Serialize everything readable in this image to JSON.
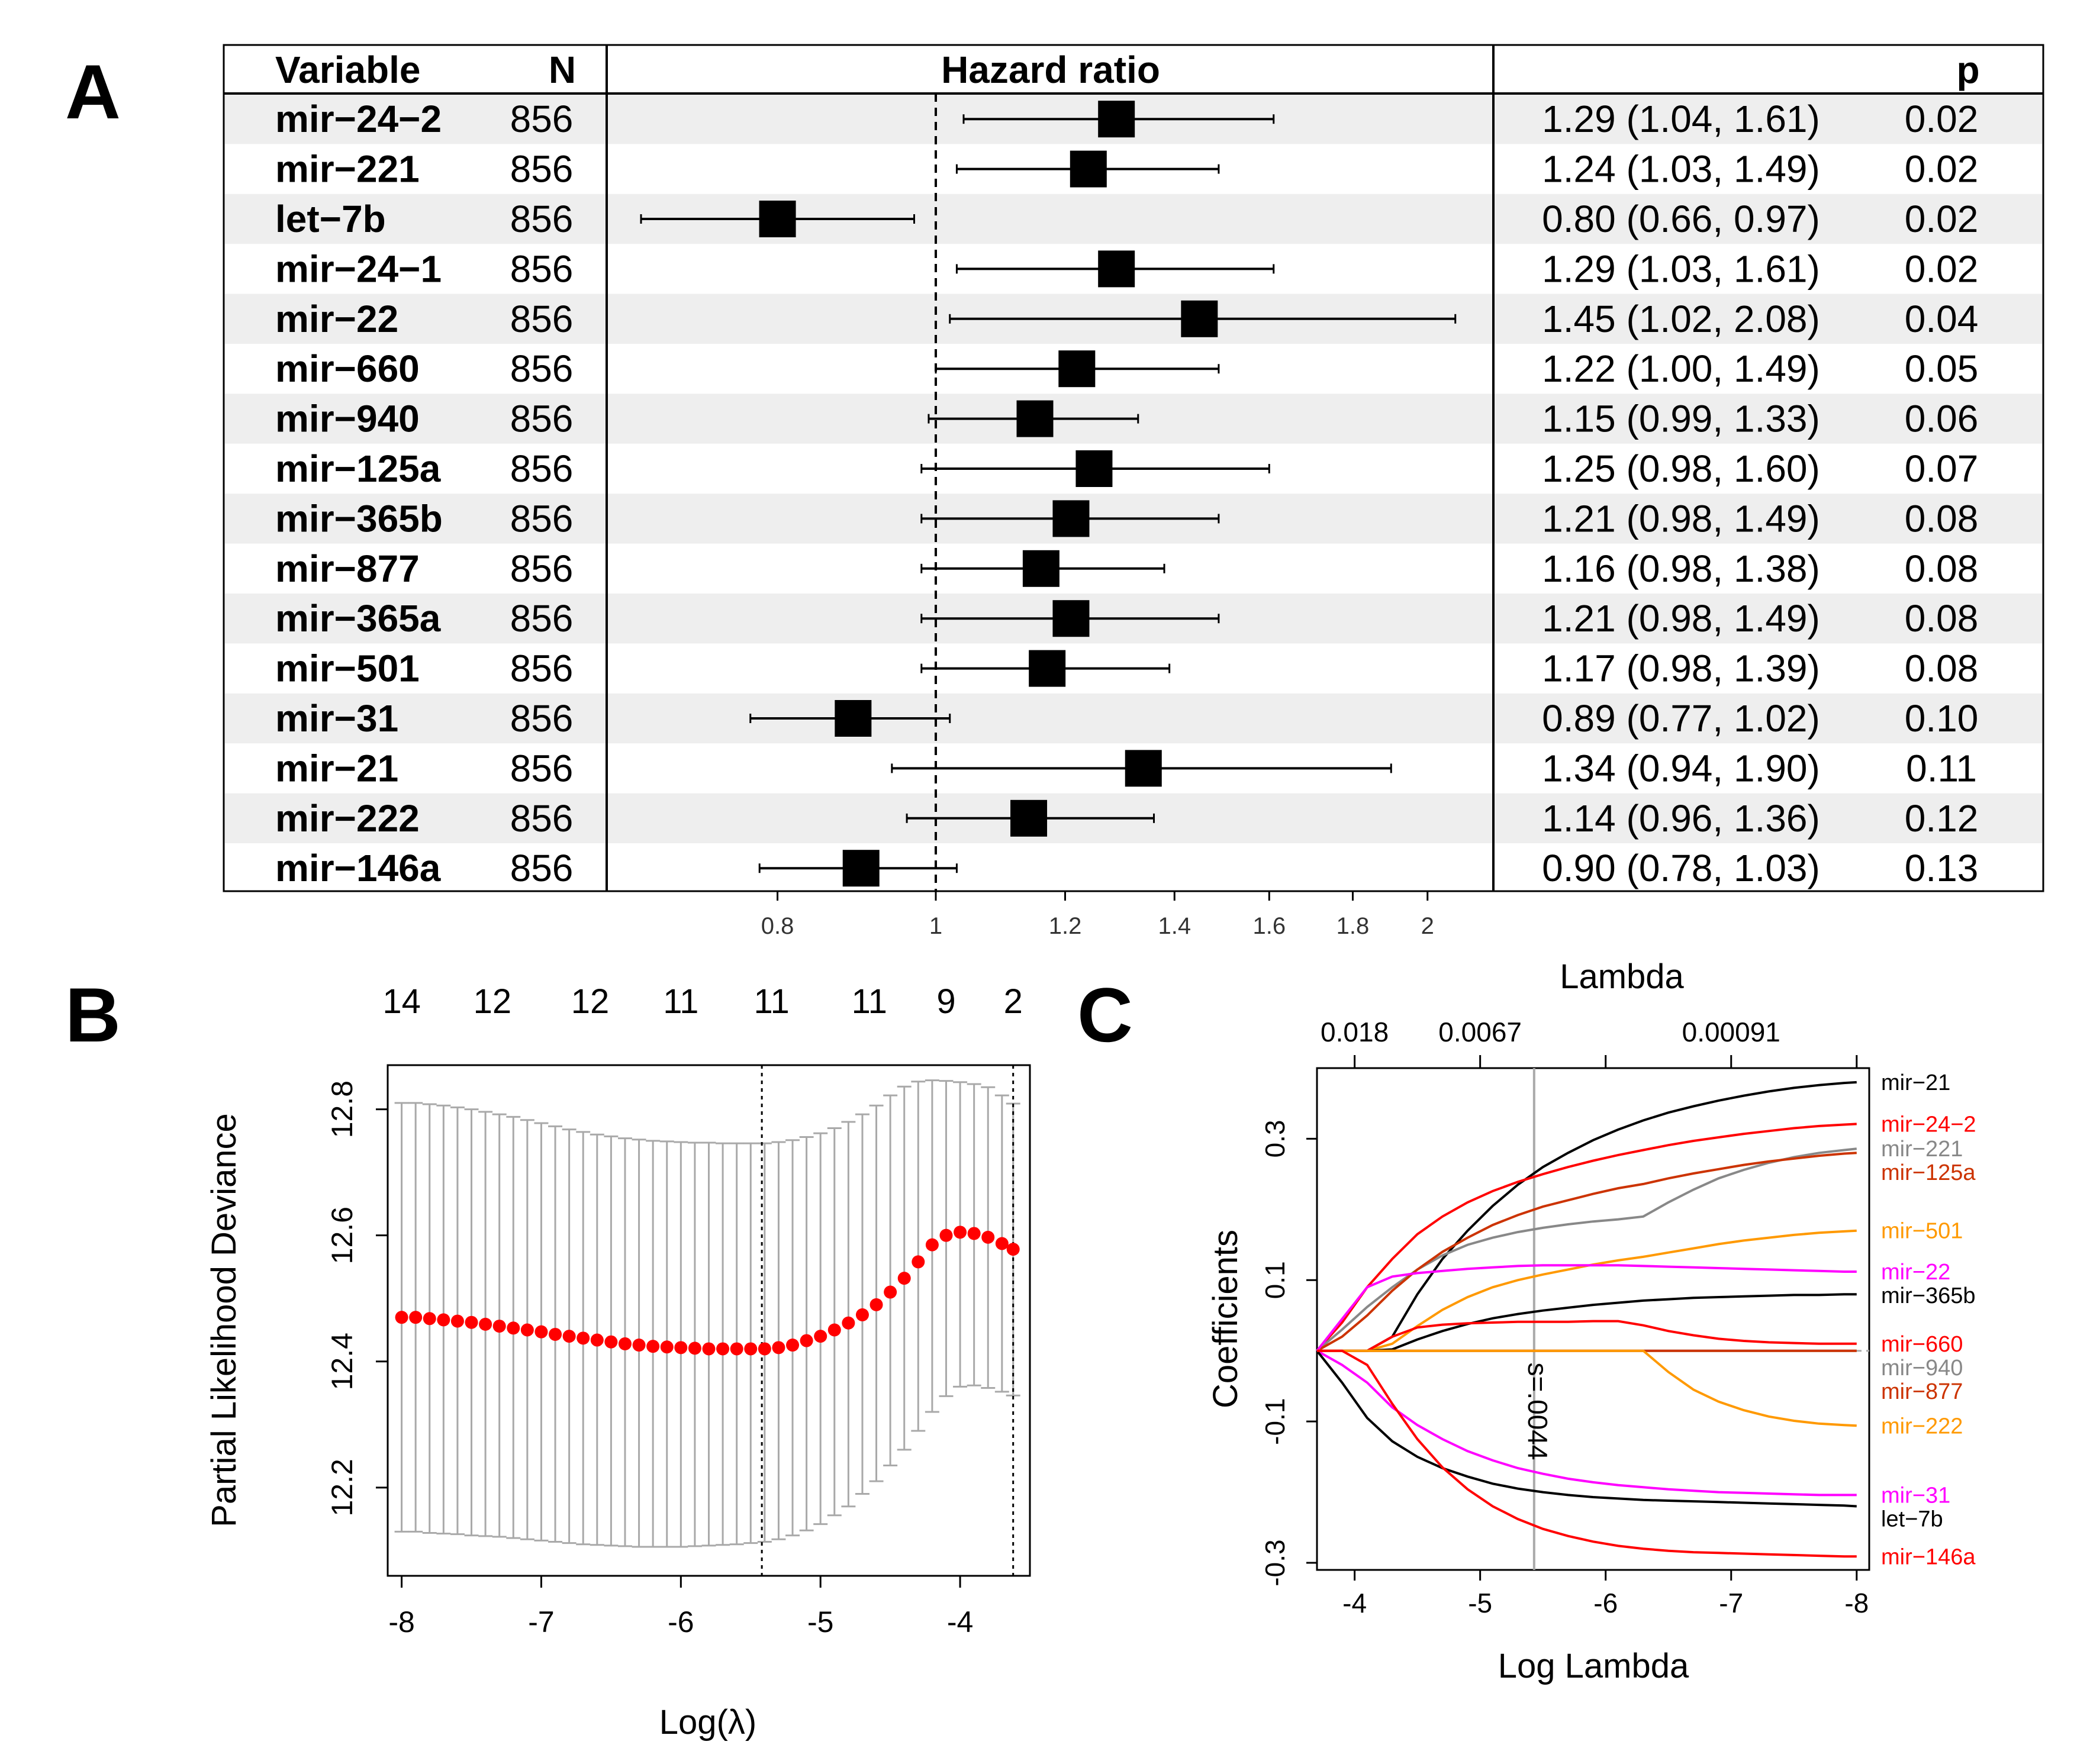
{
  "chart_data": [
    {
      "panel": "A",
      "type": "forest",
      "header": {
        "variable": "Variable",
        "n": "N",
        "hr": "Hazard ratio",
        "ci": "",
        "p": "p"
      },
      "axis_ticks": [
        "0.8",
        "1",
        "1.2",
        "1.4",
        "1.6",
        "1.8",
        "2"
      ],
      "rows": [
        {
          "variable": "mir−24−2",
          "n": "856",
          "hr": 1.29,
          "lo": 1.04,
          "hi": 1.61,
          "ci_text": "1.29 (1.04, 1.61)",
          "p": "0.02"
        },
        {
          "variable": "mir−221",
          "n": "856",
          "hr": 1.24,
          "lo": 1.03,
          "hi": 1.49,
          "ci_text": "1.24 (1.03, 1.49)",
          "p": "0.02"
        },
        {
          "variable": "let−7b",
          "n": "856",
          "hr": 0.8,
          "lo": 0.66,
          "hi": 0.97,
          "ci_text": "0.80 (0.66, 0.97)",
          "p": "0.02"
        },
        {
          "variable": "mir−24−1",
          "n": "856",
          "hr": 1.29,
          "lo": 1.03,
          "hi": 1.61,
          "ci_text": "1.29 (1.03, 1.61)",
          "p": "0.02"
        },
        {
          "variable": "mir−22",
          "n": "856",
          "hr": 1.45,
          "lo": 1.02,
          "hi": 2.08,
          "ci_text": "1.45 (1.02, 2.08)",
          "p": "0.04"
        },
        {
          "variable": "mir−660",
          "n": "856",
          "hr": 1.22,
          "lo": 1.0,
          "hi": 1.49,
          "ci_text": "1.22 (1.00, 1.49)",
          "p": "0.05"
        },
        {
          "variable": "mir−940",
          "n": "856",
          "hr": 1.15,
          "lo": 0.99,
          "hi": 1.33,
          "ci_text": "1.15 (0.99, 1.33)",
          "p": "0.06"
        },
        {
          "variable": "mir−125a",
          "n": "856",
          "hr": 1.25,
          "lo": 0.98,
          "hi": 1.6,
          "ci_text": "1.25 (0.98, 1.60)",
          "p": "0.07"
        },
        {
          "variable": "mir−365b",
          "n": "856",
          "hr": 1.21,
          "lo": 0.98,
          "hi": 1.49,
          "ci_text": "1.21 (0.98, 1.49)",
          "p": "0.08"
        },
        {
          "variable": "mir−877",
          "n": "856",
          "hr": 1.16,
          "lo": 0.98,
          "hi": 1.38,
          "ci_text": "1.16 (0.98, 1.38)",
          "p": "0.08"
        },
        {
          "variable": "mir−365a",
          "n": "856",
          "hr": 1.21,
          "lo": 0.98,
          "hi": 1.49,
          "ci_text": "1.21 (0.98, 1.49)",
          "p": "0.08"
        },
        {
          "variable": "mir−501",
          "n": "856",
          "hr": 1.17,
          "lo": 0.98,
          "hi": 1.39,
          "ci_text": "1.17 (0.98, 1.39)",
          "p": "0.08"
        },
        {
          "variable": "mir−31",
          "n": "856",
          "hr": 0.89,
          "lo": 0.77,
          "hi": 1.02,
          "ci_text": "0.89 (0.77, 1.02)",
          "p": "0.10"
        },
        {
          "variable": "mir−21",
          "n": "856",
          "hr": 1.34,
          "lo": 0.94,
          "hi": 1.9,
          "ci_text": "1.34 (0.94, 1.90)",
          "p": "0.11"
        },
        {
          "variable": "mir−222",
          "n": "856",
          "hr": 1.14,
          "lo": 0.96,
          "hi": 1.36,
          "ci_text": "1.14 (0.96, 1.36)",
          "p": "0.12"
        },
        {
          "variable": "mir−146a",
          "n": "856",
          "hr": 0.9,
          "lo": 0.78,
          "hi": 1.03,
          "ci_text": "0.90 (0.78, 1.03)",
          "p": "0.13"
        }
      ]
    },
    {
      "panel": "B",
      "type": "scatter",
      "xlabel": "Log(λ)",
      "ylabel": "Partial Likelihood Deviance",
      "xlim": [
        -8.1,
        -3.5
      ],
      "ylim": [
        12.06,
        12.87
      ],
      "x_ticks": [
        "-8",
        "-7",
        "-6",
        "-5",
        "-4"
      ],
      "y_ticks": [
        "12.2",
        "12.4",
        "12.6",
        "12.8"
      ],
      "top_labels": [
        {
          "x": -8.0,
          "label": "14"
        },
        {
          "x": -7.35,
          "label": "12"
        },
        {
          "x": -6.65,
          "label": "12"
        },
        {
          "x": -6.0,
          "label": "11"
        },
        {
          "x": -5.35,
          "label": "11"
        },
        {
          "x": -4.65,
          "label": "11"
        },
        {
          "x": -4.1,
          "label": "9"
        },
        {
          "x": -3.62,
          "label": "2"
        }
      ],
      "vlines": [
        -5.42,
        -3.62
      ],
      "x": [
        -8.0,
        -7.9,
        -7.8,
        -7.7,
        -7.6,
        -7.5,
        -7.4,
        -7.3,
        -7.2,
        -7.1,
        -7.0,
        -6.9,
        -6.8,
        -6.7,
        -6.6,
        -6.5,
        -6.4,
        -6.3,
        -6.2,
        -6.1,
        -6.0,
        -5.9,
        -5.8,
        -5.7,
        -5.6,
        -5.5,
        -5.4,
        -5.3,
        -5.2,
        -5.1,
        -5.0,
        -4.9,
        -4.8,
        -4.7,
        -4.6,
        -4.5,
        -4.4,
        -4.3,
        -4.2,
        -4.1,
        -4.0,
        -3.9,
        -3.8,
        -3.7,
        -3.62
      ],
      "values": [
        12.47,
        12.47,
        12.468,
        12.466,
        12.464,
        12.462,
        12.459,
        12.456,
        12.453,
        12.45,
        12.447,
        12.443,
        12.44,
        12.437,
        12.434,
        12.431,
        12.428,
        12.426,
        12.424,
        12.423,
        12.422,
        12.421,
        12.42,
        12.42,
        12.42,
        12.42,
        12.42,
        12.422,
        12.426,
        12.433,
        12.44,
        12.45,
        12.461,
        12.474,
        12.49,
        12.51,
        12.532,
        12.558,
        12.585,
        12.6,
        12.605,
        12.603,
        12.597,
        12.587,
        12.578
      ],
      "lower": [
        12.13,
        12.13,
        12.128,
        12.127,
        12.126,
        12.124,
        12.123,
        12.122,
        12.12,
        12.118,
        12.116,
        12.114,
        12.112,
        12.11,
        12.109,
        12.108,
        12.107,
        12.106,
        12.106,
        12.106,
        12.106,
        12.107,
        12.108,
        12.109,
        12.11,
        12.112,
        12.114,
        12.118,
        12.124,
        12.132,
        12.142,
        12.156,
        12.17,
        12.19,
        12.21,
        12.235,
        12.26,
        12.29,
        12.32,
        12.345,
        12.36,
        12.362,
        12.358,
        12.352,
        12.346
      ],
      "upper": [
        12.81,
        12.81,
        12.808,
        12.806,
        12.803,
        12.8,
        12.796,
        12.792,
        12.788,
        12.783,
        12.778,
        12.773,
        12.768,
        12.764,
        12.76,
        12.757,
        12.754,
        12.752,
        12.75,
        12.749,
        12.748,
        12.747,
        12.747,
        12.746,
        12.746,
        12.746,
        12.746,
        12.748,
        12.751,
        12.756,
        12.762,
        12.77,
        12.78,
        12.792,
        12.806,
        12.822,
        12.836,
        12.844,
        12.846,
        12.845,
        12.843,
        12.84,
        12.835,
        12.822,
        12.809
      ]
    },
    {
      "panel": "C",
      "type": "line",
      "title": "Lambda",
      "xlabel": "Log Lambda",
      "ylabel": "Coefficients",
      "xlim": [
        -3.7,
        -8.1
      ],
      "ylim": [
        -0.31,
        0.4
      ],
      "x_ticks": [
        "-4",
        "-5",
        "-6",
        "-7",
        "-8"
      ],
      "y_ticks": [
        "-0.3",
        "-0.1",
        "0.1",
        "0.3"
      ],
      "top_ticks": [
        {
          "x": -4.0,
          "label": "0.018"
        },
        {
          "x": -5.0,
          "label": "0.0067"
        },
        {
          "x": -6.0,
          "label": ""
        },
        {
          "x": -7.0,
          "label": "0.00091"
        },
        {
          "x": -8.0,
          "label": ""
        }
      ],
      "vline": {
        "x": -5.43,
        "label": "s=.0044"
      },
      "x": [
        -3.7,
        -3.9,
        -4.1,
        -4.3,
        -4.5,
        -4.7,
        -4.9,
        -5.1,
        -5.3,
        -5.5,
        -5.7,
        -5.9,
        -6.1,
        -6.3,
        -6.5,
        -6.7,
        -6.9,
        -7.1,
        -7.3,
        -7.5,
        -7.7,
        -7.9,
        -8.0
      ],
      "series": [
        {
          "name": "mir−21",
          "color": "#000000",
          "values": [
            0,
            0,
            0,
            0.02,
            0.08,
            0.13,
            0.17,
            0.205,
            0.235,
            0.26,
            0.28,
            0.298,
            0.313,
            0.326,
            0.337,
            0.346,
            0.354,
            0.361,
            0.367,
            0.372,
            0.376,
            0.379,
            0.38
          ]
        },
        {
          "name": "mir−24−2",
          "color": "#ff0000",
          "values": [
            0,
            0.04,
            0.09,
            0.13,
            0.165,
            0.19,
            0.21,
            0.226,
            0.239,
            0.25,
            0.26,
            0.269,
            0.277,
            0.284,
            0.291,
            0.297,
            0.302,
            0.307,
            0.311,
            0.315,
            0.318,
            0.32,
            0.321
          ]
        },
        {
          "name": "mir−221",
          "color": "#888888",
          "values": [
            0,
            0.03,
            0.062,
            0.09,
            0.115,
            0.135,
            0.15,
            0.16,
            0.168,
            0.174,
            0.179,
            0.183,
            0.186,
            0.19,
            0.21,
            0.228,
            0.244,
            0.256,
            0.266,
            0.274,
            0.28,
            0.284,
            0.286
          ]
        },
        {
          "name": "mir−125a",
          "color": "#cc3300",
          "values": [
            0,
            0.02,
            0.05,
            0.085,
            0.115,
            0.14,
            0.16,
            0.178,
            0.192,
            0.204,
            0.213,
            0.222,
            0.23,
            0.236,
            0.244,
            0.251,
            0.257,
            0.263,
            0.268,
            0.272,
            0.276,
            0.279,
            0.28
          ]
        },
        {
          "name": "mir−501",
          "color": "#ff9900",
          "values": [
            0,
            0,
            0,
            0.01,
            0.035,
            0.058,
            0.076,
            0.09,
            0.1,
            0.108,
            0.115,
            0.122,
            0.128,
            0.133,
            0.139,
            0.145,
            0.151,
            0.156,
            0.16,
            0.164,
            0.167,
            0.169,
            0.17
          ]
        },
        {
          "name": "mir−22",
          "color": "#ff00ff",
          "values": [
            0,
            0.045,
            0.09,
            0.105,
            0.11,
            0.113,
            0.116,
            0.118,
            0.12,
            0.121,
            0.121,
            0.121,
            0.121,
            0.12,
            0.119,
            0.118,
            0.117,
            0.116,
            0.115,
            0.114,
            0.113,
            0.112,
            0.112
          ]
        },
        {
          "name": "mir−365b",
          "color": "#000000",
          "values": [
            0,
            0,
            0,
            0.002,
            0.016,
            0.028,
            0.038,
            0.046,
            0.052,
            0.057,
            0.061,
            0.065,
            0.068,
            0.071,
            0.073,
            0.075,
            0.076,
            0.077,
            0.078,
            0.079,
            0.079,
            0.08,
            0.08
          ]
        },
        {
          "name": "mir−660",
          "color": "#ff0000",
          "values": [
            0,
            0,
            0,
            0.02,
            0.033,
            0.037,
            0.039,
            0.04,
            0.041,
            0.041,
            0.041,
            0.042,
            0.042,
            0.036,
            0.028,
            0.022,
            0.017,
            0.014,
            0.012,
            0.011,
            0.01,
            0.01,
            0.01
          ]
        },
        {
          "name": "mir−940",
          "color": "#888888",
          "values": [
            0,
            0,
            0,
            0,
            0,
            0,
            0,
            0,
            0,
            0,
            0,
            0,
            0,
            0,
            0,
            0,
            0,
            0,
            0,
            0,
            0,
            0,
            0
          ]
        },
        {
          "name": "mir−877",
          "color": "#cc3300",
          "values": [
            0,
            0,
            0,
            0,
            0,
            0,
            0,
            0,
            0,
            0,
            0,
            0,
            0,
            0,
            0,
            0,
            0,
            0,
            0,
            0,
            0,
            0,
            0
          ]
        },
        {
          "name": "mir−222",
          "color": "#ff9900",
          "values": [
            0,
            0,
            0,
            0,
            0,
            0,
            0,
            0,
            0,
            0,
            0,
            0,
            0,
            0,
            -0.03,
            -0.055,
            -0.072,
            -0.084,
            -0.093,
            -0.099,
            -0.103,
            -0.105,
            -0.106
          ]
        },
        {
          "name": "mir−31",
          "color": "#ff00ff",
          "values": [
            0,
            -0.02,
            -0.045,
            -0.08,
            -0.105,
            -0.125,
            -0.142,
            -0.155,
            -0.166,
            -0.174,
            -0.181,
            -0.186,
            -0.19,
            -0.193,
            -0.196,
            -0.198,
            -0.2,
            -0.201,
            -0.202,
            -0.203,
            -0.204,
            -0.204,
            -0.204
          ]
        },
        {
          "name": "let−7b",
          "color": "#000000",
          "values": [
            0,
            -0.045,
            -0.095,
            -0.128,
            -0.15,
            -0.166,
            -0.178,
            -0.188,
            -0.195,
            -0.2,
            -0.204,
            -0.207,
            -0.209,
            -0.211,
            -0.212,
            -0.213,
            -0.214,
            -0.215,
            -0.216,
            -0.217,
            -0.218,
            -0.219,
            -0.22
          ]
        },
        {
          "name": "mir−146a",
          "color": "#ff0000",
          "values": [
            0,
            0,
            -0.02,
            -0.075,
            -0.125,
            -0.165,
            -0.196,
            -0.22,
            -0.238,
            -0.252,
            -0.262,
            -0.27,
            -0.276,
            -0.28,
            -0.283,
            -0.285,
            -0.286,
            -0.287,
            -0.288,
            -0.289,
            -0.29,
            -0.291,
            -0.291
          ]
        }
      ],
      "legend_order": [
        "mir−21",
        "mir−24−2",
        "mir−221",
        "mir−125a",
        "mir−501",
        "mir−22",
        "mir−365b",
        "mir−660",
        "mir−940",
        "mir−877",
        "mir−222",
        "mir−31",
        "let−7b",
        "mir−146a"
      ]
    }
  ],
  "panels": {
    "a": "A",
    "b": "B",
    "c": "C"
  }
}
